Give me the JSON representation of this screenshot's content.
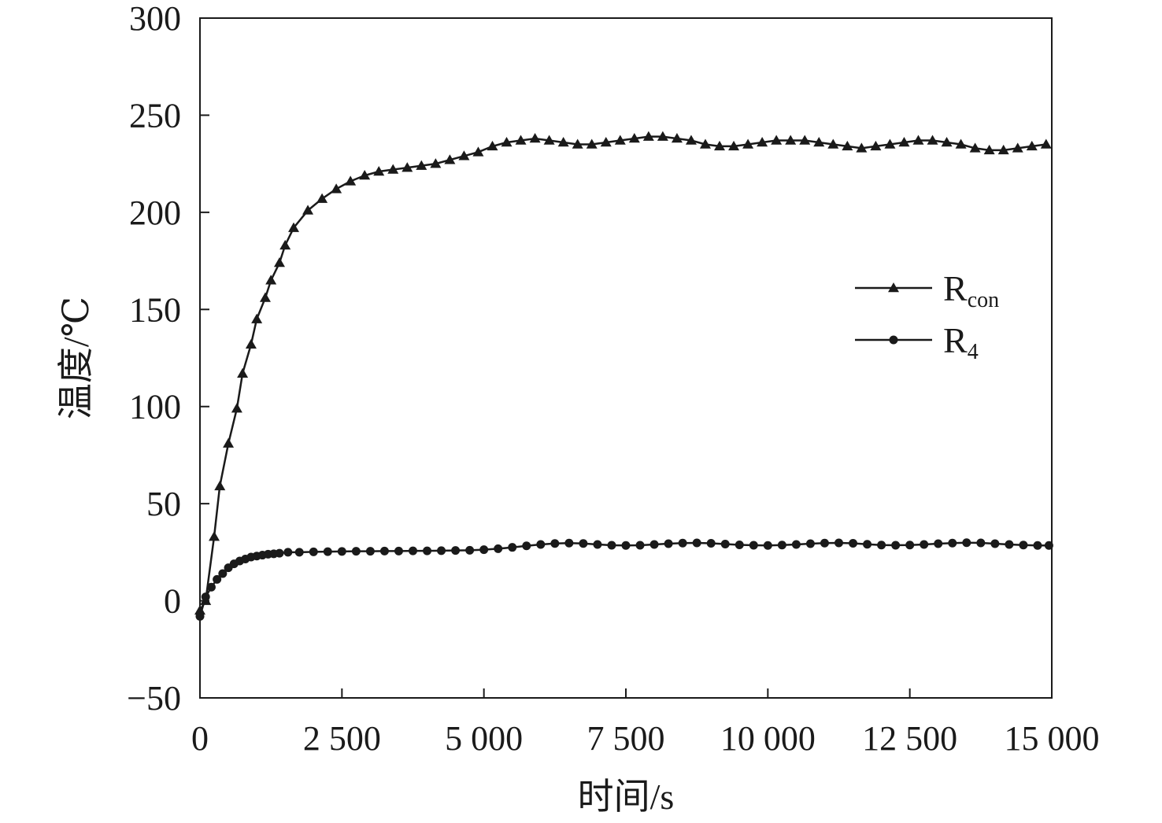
{
  "chart_data": {
    "type": "line",
    "title": "",
    "xlabel": "时间/s",
    "ylabel": "温度/℃",
    "xlim": [
      0,
      15000
    ],
    "ylim": [
      -50,
      300
    ],
    "x_ticks": [
      0,
      2500,
      5000,
      7500,
      10000,
      12500,
      15000
    ],
    "x_tick_labels": [
      "0",
      "2 500",
      "5 000",
      "7 500",
      "10 000",
      "12 500",
      "15 000"
    ],
    "y_ticks": [
      -50,
      0,
      50,
      100,
      150,
      200,
      250,
      300
    ],
    "y_tick_labels": [
      "−50",
      "0",
      "50",
      "100",
      "150",
      "200",
      "250",
      "300"
    ],
    "grid": false,
    "legend_position": "right",
    "series": [
      {
        "name": "Rcon",
        "legend_main": "R",
        "legend_sub": "con",
        "marker": "triangle",
        "color": "#1a1a1a",
        "x": [
          0,
          100,
          250,
          350,
          500,
          650,
          750,
          900,
          1000,
          1150,
          1250,
          1400,
          1500,
          1650,
          1900,
          2150,
          2400,
          2650,
          2900,
          3150,
          3400,
          3650,
          3900,
          4150,
          4400,
          4650,
          4900,
          5150,
          5400,
          5650,
          5900,
          6150,
          6400,
          6650,
          6900,
          7150,
          7400,
          7650,
          7900,
          8150,
          8400,
          8650,
          8900,
          9150,
          9400,
          9650,
          9900,
          10150,
          10400,
          10650,
          10900,
          11150,
          11400,
          11650,
          11900,
          12150,
          12400,
          12650,
          12900,
          13150,
          13400,
          13650,
          13900,
          14150,
          14400,
          14650,
          14900
        ],
        "y": [
          -5,
          0,
          33,
          59,
          81,
          99,
          117,
          132,
          145,
          156,
          165,
          174,
          183,
          192,
          201,
          207,
          212,
          216,
          219,
          221,
          222,
          223,
          224,
          225,
          227,
          229,
          231,
          234,
          236,
          237,
          238,
          237,
          236,
          235,
          235,
          236,
          237,
          238,
          239,
          239,
          238,
          237,
          235,
          234,
          234,
          235,
          236,
          237,
          237,
          237,
          236,
          235,
          234,
          233,
          234,
          235,
          236,
          237,
          237,
          236,
          235,
          233,
          232,
          232,
          233,
          234,
          235
        ]
      },
      {
        "name": "R4",
        "legend_main": "R",
        "legend_sub": "4",
        "marker": "circle",
        "color": "#1a1a1a",
        "x": [
          0,
          100,
          200,
          300,
          400,
          500,
          600,
          700,
          800,
          900,
          1000,
          1100,
          1200,
          1300,
          1400,
          1550,
          1750,
          2000,
          2250,
          2500,
          2750,
          3000,
          3250,
          3500,
          3750,
          4000,
          4250,
          4500,
          4750,
          5000,
          5250,
          5500,
          5750,
          6000,
          6250,
          6500,
          6750,
          7000,
          7250,
          7500,
          7750,
          8000,
          8250,
          8500,
          8750,
          9000,
          9250,
          9500,
          9750,
          10000,
          10250,
          10500,
          10750,
          11000,
          11250,
          11500,
          11750,
          12000,
          12250,
          12500,
          12750,
          13000,
          13250,
          13500,
          13750,
          14000,
          14250,
          14500,
          14750,
          14950
        ],
        "y": [
          -8,
          2,
          7,
          11,
          14,
          17,
          19,
          20.5,
          21.5,
          22.5,
          23,
          23.5,
          24,
          24.2,
          24.5,
          25,
          25,
          25.2,
          25.3,
          25.4,
          25.5,
          25.5,
          25.6,
          25.6,
          25.7,
          25.7,
          25.8,
          25.9,
          26,
          26.3,
          26.8,
          27.5,
          28.3,
          29,
          29.5,
          29.7,
          29.5,
          29,
          28.6,
          28.5,
          28.6,
          29,
          29.4,
          29.7,
          29.8,
          29.6,
          29.2,
          28.8,
          28.6,
          28.5,
          28.7,
          29,
          29.4,
          29.7,
          29.8,
          29.6,
          29.1,
          28.7,
          28.6,
          28.7,
          29,
          29.4,
          29.7,
          29.9,
          29.8,
          29.4,
          29,
          28.7,
          28.5,
          28.5
        ]
      }
    ]
  }
}
